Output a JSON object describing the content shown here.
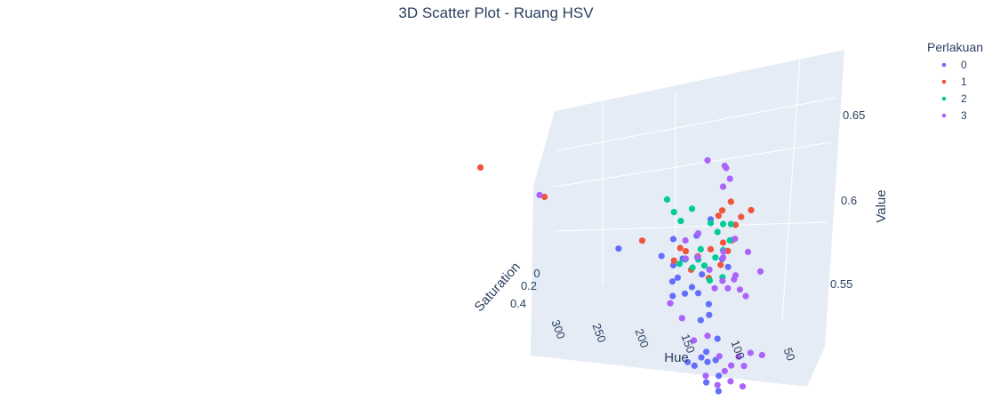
{
  "chart_data": {
    "type": "scatter",
    "title": "3D Scatter Plot - Ruang HSV",
    "x_axis": {
      "label": "Hue",
      "ticks": [
        "300",
        "250",
        "200",
        "150",
        "100",
        "50"
      ]
    },
    "y_axis": {
      "label": "Saturation",
      "ticks": [
        "0",
        "0.2",
        "0.4"
      ]
    },
    "z_axis": {
      "label": "Value",
      "ticks": [
        "0.65",
        "0.6",
        "0.55"
      ]
    },
    "legend": {
      "title": "Perlakuan",
      "placement": "top-right"
    },
    "series": [
      {
        "name": "0",
        "color": "#636efa",
        "points": [
          [
            140,
            0.3,
            0.612
          ],
          [
            120,
            0.35,
            0.62
          ],
          [
            110,
            0.3,
            0.63
          ],
          [
            132,
            0.32,
            0.604
          ],
          [
            150,
            0.28,
            0.6
          ],
          [
            100,
            0.33,
            0.612
          ],
          [
            125,
            0.3,
            0.59
          ],
          [
            135,
            0.36,
            0.594
          ],
          [
            140,
            0.3,
            0.598
          ],
          [
            116,
            0.34,
            0.6
          ],
          [
            120,
            0.3,
            0.588
          ],
          [
            130,
            0.33,
            0.586
          ],
          [
            110,
            0.36,
            0.586
          ],
          [
            140,
            0.32,
            0.582
          ],
          [
            96,
            0.3,
            0.608
          ],
          [
            110,
            0.4,
            0.556
          ],
          [
            120,
            0.42,
            0.552
          ],
          [
            104,
            0.38,
            0.558
          ],
          [
            126,
            0.4,
            0.552
          ],
          [
            100,
            0.44,
            0.552
          ],
          [
            116,
            0.36,
            0.556
          ],
          [
            110,
            0.44,
            0.546
          ],
          [
            100,
            0.45,
            0.544
          ],
          [
            112,
            0.36,
            0.56
          ],
          [
            104,
            0.32,
            0.568
          ],
          [
            118,
            0.3,
            0.574
          ],
          [
            184,
            0.3,
            0.596
          ],
          [
            140,
            0.33,
            0.59
          ],
          [
            110,
            0.35,
            0.58
          ]
        ]
      },
      {
        "name": "1",
        "color": "#ef553b",
        "points": [
          [
            300,
            0.1,
            0.606
          ],
          [
            246,
            0.2,
            0.606
          ],
          [
            80,
            0.2,
            0.64
          ],
          [
            95,
            0.25,
            0.642
          ],
          [
            100,
            0.33,
            0.638
          ],
          [
            105,
            0.25,
            0.632
          ],
          [
            85,
            0.32,
            0.638
          ],
          [
            90,
            0.3,
            0.632
          ],
          [
            135,
            0.28,
            0.608
          ],
          [
            130,
            0.3,
            0.608
          ],
          [
            120,
            0.31,
            0.608
          ],
          [
            110,
            0.3,
            0.614
          ],
          [
            125,
            0.33,
            0.6
          ],
          [
            140,
            0.28,
            0.6
          ],
          [
            110,
            0.36,
            0.6
          ],
          [
            100,
            0.3,
            0.62
          ],
          [
            95,
            0.35,
            0.618
          ],
          [
            92,
            0.33,
            0.624
          ],
          [
            100,
            0.38,
            0.61
          ],
          [
            165,
            0.3,
            0.605
          ]
        ]
      },
      {
        "name": "2",
        "color": "#00cc96",
        "points": [
          [
            145,
            0.3,
            0.632
          ],
          [
            140,
            0.28,
            0.626
          ],
          [
            135,
            0.26,
            0.622
          ],
          [
            125,
            0.3,
            0.632
          ],
          [
            110,
            0.3,
            0.628
          ],
          [
            105,
            0.28,
            0.624
          ],
          [
            100,
            0.3,
            0.616
          ],
          [
            95,
            0.28,
            0.622
          ],
          [
            120,
            0.3,
            0.606
          ],
          [
            130,
            0.32,
            0.604
          ],
          [
            125,
            0.28,
            0.6
          ],
          [
            115,
            0.3,
            0.604
          ],
          [
            100,
            0.32,
            0.602
          ],
          [
            135,
            0.3,
            0.6
          ],
          [
            110,
            0.33,
            0.598
          ],
          [
            100,
            0.3,
            0.63
          ],
          [
            95,
            0.25,
            0.63
          ],
          [
            105,
            0.35,
            0.612
          ],
          [
            118,
            0.3,
            0.612
          ]
        ]
      },
      {
        "name": "3",
        "color": "#ab63fa",
        "points": [
          [
            250,
            0.2,
            0.606
          ],
          [
            115,
            0.2,
            0.658
          ],
          [
            100,
            0.25,
            0.66
          ],
          [
            98,
            0.28,
            0.66
          ],
          [
            95,
            0.28,
            0.655
          ],
          [
            100,
            0.3,
            0.65
          ],
          [
            80,
            0.3,
            0.62
          ],
          [
            70,
            0.3,
            0.612
          ],
          [
            90,
            0.32,
            0.625
          ],
          [
            120,
            0.3,
            0.62
          ],
          [
            130,
            0.3,
            0.604
          ],
          [
            100,
            0.3,
            0.612
          ],
          [
            95,
            0.35,
            0.598
          ],
          [
            100,
            0.32,
            0.6
          ],
          [
            110,
            0.34,
            0.604
          ],
          [
            120,
            0.33,
            0.608
          ],
          [
            90,
            0.35,
            0.604
          ],
          [
            85,
            0.36,
            0.6
          ],
          [
            80,
            0.37,
            0.598
          ],
          [
            105,
            0.37,
            0.596
          ],
          [
            110,
            0.4,
            0.57
          ],
          [
            100,
            0.42,
            0.562
          ],
          [
            90,
            0.44,
            0.56
          ],
          [
            80,
            0.43,
            0.562
          ],
          [
            95,
            0.45,
            0.556
          ],
          [
            75,
            0.42,
            0.57
          ],
          [
            85,
            0.4,
            0.565
          ],
          [
            65,
            0.45,
            0.572
          ],
          [
            100,
            0.48,
            0.548
          ],
          [
            90,
            0.46,
            0.552
          ],
          [
            80,
            0.47,
            0.552
          ],
          [
            110,
            0.46,
            0.55
          ],
          [
            120,
            0.44,
            0.566
          ],
          [
            130,
            0.42,
            0.575
          ],
          [
            140,
            0.4,
            0.58
          ],
          [
            90,
            0.3,
            0.605
          ],
          [
            100,
            0.29,
            0.615
          ],
          [
            130,
            0.31,
            0.614
          ]
        ]
      }
    ]
  }
}
